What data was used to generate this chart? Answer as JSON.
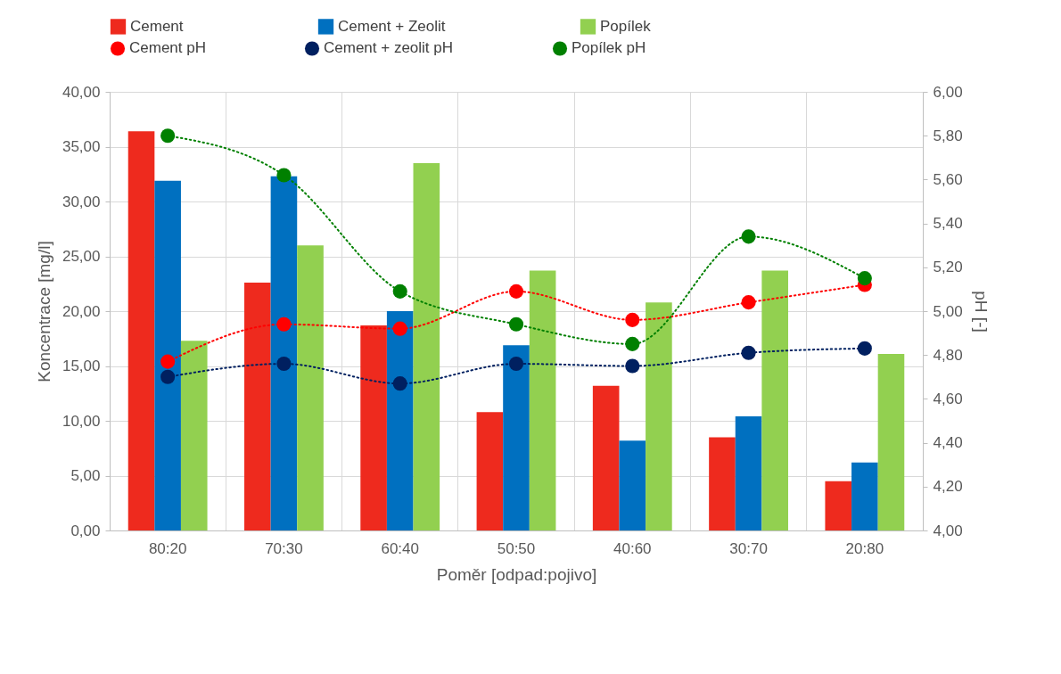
{
  "chart_data": {
    "type": "bar",
    "xlabel": "Poměr [odpad:pojivo]",
    "ylabel": "Koncentrace [mg/l]",
    "y2label": "pH [-]",
    "categories": [
      "80:20",
      "70:30",
      "60:40",
      "50:50",
      "40:60",
      "30:70",
      "20:80"
    ],
    "series": [
      {
        "name": "Cement",
        "color": "#ee2a1e",
        "values": [
          36.4,
          22.6,
          18.7,
          10.8,
          13.2,
          8.5,
          4.5
        ]
      },
      {
        "name": "Cement + Zeolit",
        "color": "#0070c0",
        "values": [
          31.9,
          32.3,
          20.0,
          16.9,
          8.2,
          10.4,
          6.2
        ]
      },
      {
        "name": "Popílek",
        "color": "#92d050",
        "values": [
          17.3,
          26.0,
          33.5,
          23.7,
          20.8,
          23.7,
          16.1
        ]
      },
      {
        "name": "Cement pH",
        "type": "line",
        "axis": "y2",
        "marker": "circle",
        "line_style": "dotted",
        "color": "#ff0000",
        "values": [
          4.77,
          4.94,
          4.92,
          5.09,
          4.96,
          5.04,
          5.12
        ]
      },
      {
        "name": "Cement + zeolit pH",
        "type": "line",
        "axis": "y2",
        "marker": "circle",
        "line_style": "dotted",
        "color": "#002060",
        "values": [
          4.7,
          4.76,
          4.67,
          4.76,
          4.75,
          4.81,
          4.83
        ]
      },
      {
        "name": "Popílek pH",
        "type": "line",
        "axis": "y2",
        "marker": "circle",
        "line_style": "dotted",
        "color": "#008000",
        "values": [
          5.8,
          5.62,
          5.09,
          4.94,
          4.85,
          5.34,
          5.15
        ]
      }
    ],
    "ylim": [
      0,
      40
    ],
    "yticks": [
      {
        "value": 0,
        "label": "0,00"
      },
      {
        "value": 5,
        "label": "5,00"
      },
      {
        "value": 10,
        "label": "10,00"
      },
      {
        "value": 15,
        "label": "15,00"
      },
      {
        "value": 20,
        "label": "20,00"
      },
      {
        "value": 25,
        "label": "25,00"
      },
      {
        "value": 30,
        "label": "30,00"
      },
      {
        "value": 35,
        "label": "35,00"
      },
      {
        "value": 40,
        "label": "40,00"
      }
    ],
    "y2lim": [
      4,
      6
    ],
    "y2ticks": [
      {
        "value": 4,
        "label": "4,00"
      },
      {
        "value": 4.2,
        "label": "4,20"
      },
      {
        "value": 4.4,
        "label": "4,40"
      },
      {
        "value": 4.6,
        "label": "4,60"
      },
      {
        "value": 4.8,
        "label": "4,80"
      },
      {
        "value": 5,
        "label": "5,00"
      },
      {
        "value": 5.2,
        "label": "5,20"
      },
      {
        "value": 5.4,
        "label": "5,40"
      },
      {
        "value": 5.6,
        "label": "5,60"
      },
      {
        "value": 5.8,
        "label": "5,80"
      },
      {
        "value": 6,
        "label": "6,00"
      }
    ],
    "grid": true,
    "legend": "top"
  }
}
